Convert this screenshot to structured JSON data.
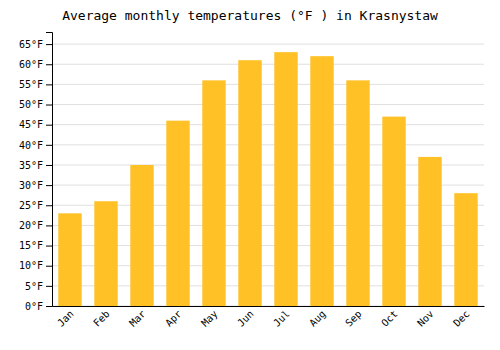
{
  "chart_data": {
    "type": "bar",
    "title": "Average monthly temperatures (°F ) in Krasnystaw",
    "categories": [
      "Jan",
      "Feb",
      "Mar",
      "Apr",
      "May",
      "Jun",
      "Jul",
      "Aug",
      "Sep",
      "Oct",
      "Nov",
      "Dec"
    ],
    "values": [
      23,
      26,
      35,
      46,
      56,
      61,
      63,
      62,
      56,
      47,
      37,
      28
    ],
    "color": "#FFC125",
    "ylim": [
      0,
      68
    ],
    "yticks": [
      {
        "value": 0,
        "label": "0°F"
      },
      {
        "value": 5,
        "label": "5°F"
      },
      {
        "value": 10,
        "label": "10°F"
      },
      {
        "value": 15,
        "label": "15°F"
      },
      {
        "value": 20,
        "label": "20°F"
      },
      {
        "value": 25,
        "label": "25°F"
      },
      {
        "value": 30,
        "label": "30°F"
      },
      {
        "value": 35,
        "label": "35°F"
      },
      {
        "value": 40,
        "label": "40°F"
      },
      {
        "value": 45,
        "label": "45°F"
      },
      {
        "value": 50,
        "label": "50°F"
      },
      {
        "value": 55,
        "label": "55°F"
      },
      {
        "value": 60,
        "label": "60°F"
      },
      {
        "value": 65,
        "label": "65°F"
      }
    ],
    "grid": true
  }
}
